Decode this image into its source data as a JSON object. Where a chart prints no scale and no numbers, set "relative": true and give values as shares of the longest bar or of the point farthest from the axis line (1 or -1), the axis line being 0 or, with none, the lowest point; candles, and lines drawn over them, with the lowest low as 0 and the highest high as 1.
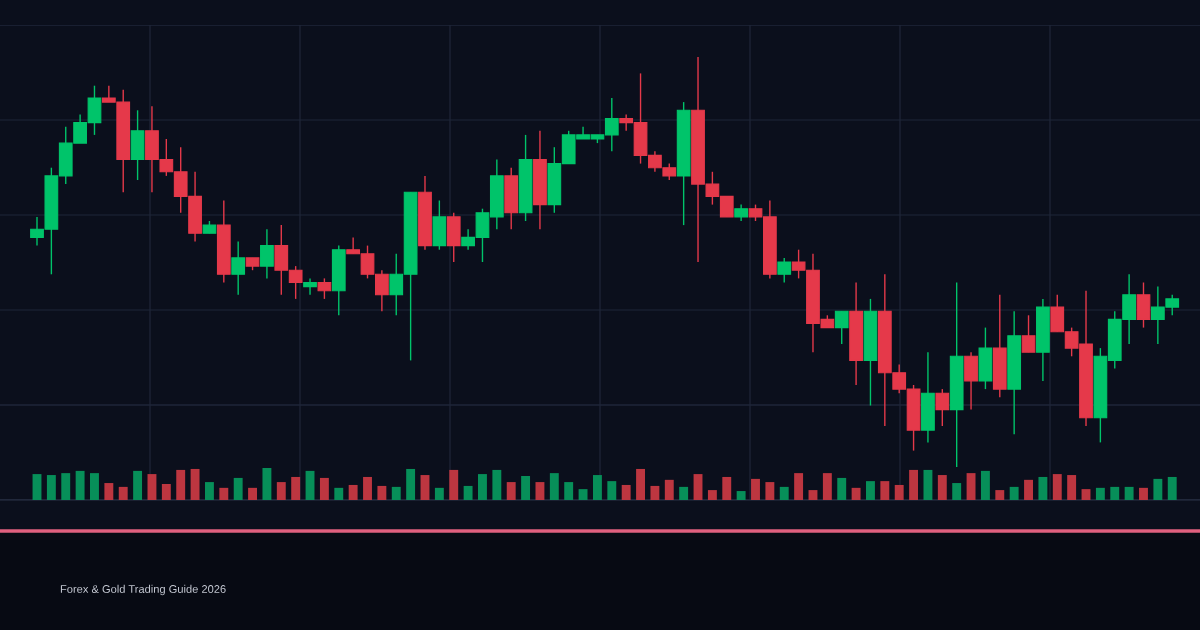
{
  "chart_data": [
    {
      "type": "candlestick",
      "relative": true,
      "grid": true,
      "annotations": [
        "Forex & Gold Trading Guide 2026"
      ],
      "categories": [
        null,
        null,
        null,
        null,
        null,
        null,
        null,
        null,
        null,
        null,
        null,
        null,
        null,
        null,
        null,
        null,
        null,
        null,
        null,
        null,
        null,
        null,
        null,
        null,
        null,
        null,
        null,
        null,
        null,
        null,
        null,
        null,
        null,
        null,
        null,
        null,
        null,
        null,
        null,
        null,
        null,
        null,
        null,
        null,
        null,
        null,
        null,
        null,
        null,
        null,
        null,
        null,
        null,
        null,
        null,
        null,
        null,
        null,
        null,
        null,
        null,
        null,
        null,
        null,
        null,
        null,
        null,
        null,
        null,
        null,
        null,
        null,
        null,
        null,
        null,
        null,
        null,
        null,
        null,
        null
      ],
      "ohlc": [
        [
          0.56,
          0.61,
          0.54,
          0.58
        ],
        [
          0.58,
          0.73,
          0.47,
          0.71
        ],
        [
          0.71,
          0.83,
          0.69,
          0.79
        ],
        [
          0.79,
          0.86,
          0.79,
          0.84
        ],
        [
          0.84,
          0.93,
          0.81,
          0.9
        ],
        [
          0.9,
          0.93,
          0.89,
          0.89
        ],
        [
          0.89,
          0.92,
          0.67,
          0.75
        ],
        [
          0.75,
          0.87,
          0.7,
          0.82
        ],
        [
          0.82,
          0.88,
          0.67,
          0.75
        ],
        [
          0.75,
          0.8,
          0.71,
          0.72
        ],
        [
          0.72,
          0.78,
          0.62,
          0.66
        ],
        [
          0.66,
          0.72,
          0.55,
          0.57
        ],
        [
          0.57,
          0.6,
          0.57,
          0.59
        ],
        [
          0.59,
          0.65,
          0.45,
          0.47
        ],
        [
          0.47,
          0.55,
          0.42,
          0.51
        ],
        [
          0.51,
          0.51,
          0.48,
          0.49
        ],
        [
          0.49,
          0.58,
          0.46,
          0.54
        ],
        [
          0.54,
          0.59,
          0.42,
          0.48
        ],
        [
          0.48,
          0.49,
          0.41,
          0.45
        ],
        [
          0.44,
          0.46,
          0.42,
          0.45
        ],
        [
          0.45,
          0.46,
          0.41,
          0.43
        ],
        [
          0.43,
          0.54,
          0.37,
          0.53
        ],
        [
          0.53,
          0.56,
          0.52,
          0.52
        ],
        [
          0.52,
          0.54,
          0.46,
          0.47
        ],
        [
          0.47,
          0.48,
          0.38,
          0.42
        ],
        [
          0.42,
          0.52,
          0.37,
          0.47
        ],
        [
          0.47,
          0.67,
          0.26,
          0.67
        ],
        [
          0.67,
          0.71,
          0.53,
          0.54
        ],
        [
          0.54,
          0.65,
          0.53,
          0.61
        ],
        [
          0.61,
          0.62,
          0.5,
          0.54
        ],
        [
          0.54,
          0.58,
          0.53,
          0.56
        ],
        [
          0.56,
          0.63,
          0.5,
          0.62
        ],
        [
          0.61,
          0.75,
          0.58,
          0.71
        ],
        [
          0.71,
          0.73,
          0.58,
          0.62
        ],
        [
          0.62,
          0.81,
          0.6,
          0.75
        ],
        [
          0.75,
          0.82,
          0.58,
          0.64
        ],
        [
          0.64,
          0.78,
          0.62,
          0.74
        ],
        [
          0.74,
          0.82,
          0.74,
          0.81
        ],
        [
          0.8,
          0.83,
          0.8,
          0.81
        ],
        [
          0.8,
          0.81,
          0.79,
          0.81
        ],
        [
          0.81,
          0.9,
          0.77,
          0.85
        ],
        [
          0.85,
          0.86,
          0.82,
          0.84
        ],
        [
          0.84,
          0.96,
          0.74,
          0.76
        ],
        [
          0.76,
          0.77,
          0.72,
          0.73
        ],
        [
          0.73,
          0.74,
          0.7,
          0.71
        ],
        [
          0.71,
          0.89,
          0.59,
          0.87
        ],
        [
          0.87,
          1.0,
          0.5,
          0.69
        ],
        [
          0.69,
          0.72,
          0.64,
          0.66
        ],
        [
          0.66,
          0.66,
          0.61,
          0.61
        ],
        [
          0.61,
          0.64,
          0.6,
          0.63
        ],
        [
          0.63,
          0.64,
          0.6,
          0.61
        ],
        [
          0.61,
          0.65,
          0.46,
          0.47
        ],
        [
          0.47,
          0.51,
          0.45,
          0.5
        ],
        [
          0.5,
          0.53,
          0.46,
          0.48
        ],
        [
          0.48,
          0.52,
          0.28,
          0.35
        ],
        [
          0.36,
          0.37,
          0.34,
          0.34
        ],
        [
          0.34,
          0.38,
          0.3,
          0.38
        ],
        [
          0.38,
          0.45,
          0.2,
          0.26
        ],
        [
          0.26,
          0.41,
          0.15,
          0.38
        ],
        [
          0.38,
          0.47,
          0.1,
          0.23
        ],
        [
          0.23,
          0.25,
          0.18,
          0.19
        ],
        [
          0.19,
          0.2,
          0.04,
          0.09
        ],
        [
          0.09,
          0.28,
          0.06,
          0.18
        ],
        [
          0.18,
          0.19,
          0.1,
          0.14
        ],
        [
          0.14,
          0.45,
          0.0,
          0.27
        ],
        [
          0.27,
          0.28,
          0.14,
          0.21
        ],
        [
          0.21,
          0.34,
          0.19,
          0.29
        ],
        [
          0.29,
          0.42,
          0.17,
          0.19
        ],
        [
          0.19,
          0.38,
          0.08,
          0.32
        ],
        [
          0.32,
          0.37,
          0.28,
          0.28
        ],
        [
          0.28,
          0.41,
          0.21,
          0.39
        ],
        [
          0.39,
          0.42,
          0.33,
          0.33
        ],
        [
          0.33,
          0.34,
          0.27,
          0.29
        ],
        [
          0.3,
          0.43,
          0.1,
          0.12
        ],
        [
          0.12,
          0.29,
          0.06,
          0.27
        ],
        [
          0.26,
          0.38,
          0.24,
          0.36
        ],
        [
          0.36,
          0.47,
          0.3,
          0.42
        ],
        [
          0.42,
          0.45,
          0.34,
          0.36
        ],
        [
          0.36,
          0.44,
          0.3,
          0.39
        ],
        [
          0.39,
          0.42,
          0.37,
          0.41
        ]
      ],
      "colors": [
        "#00c46a",
        "#00c46a",
        "#00c46a",
        "#00c46a",
        "#00c46a",
        "#e5394a",
        "#e5394a",
        "#00c46a",
        "#e5394a",
        "#e5394a",
        "#e5394a",
        "#e5394a",
        "#00c46a",
        "#e5394a",
        "#00c46a",
        "#e5394a",
        "#00c46a",
        "#e5394a",
        "#e5394a",
        "#00c46a",
        "#e5394a",
        "#00c46a",
        "#e5394a",
        "#e5394a",
        "#e5394a",
        "#00c46a",
        "#00c46a",
        "#e5394a",
        "#00c46a",
        "#e5394a",
        "#00c46a",
        "#00c46a",
        "#00c46a",
        "#e5394a",
        "#00c46a",
        "#e5394a",
        "#00c46a",
        "#00c46a",
        "#00c46a",
        "#00c46a",
        "#00c46a",
        "#e5394a",
        "#e5394a",
        "#e5394a",
        "#e5394a",
        "#00c46a",
        "#e5394a",
        "#e5394a",
        "#e5394a",
        "#00c46a",
        "#e5394a",
        "#e5394a",
        "#00c46a",
        "#e5394a",
        "#e5394a",
        "#e5394a",
        "#00c46a",
        "#e5394a",
        "#00c46a",
        "#e5394a",
        "#e5394a",
        "#e5394a",
        "#00c46a",
        "#e5394a",
        "#00c46a",
        "#e5394a",
        "#00c46a",
        "#e5394a",
        "#00c46a",
        "#e5394a",
        "#00c46a",
        "#e5394a",
        "#e5394a",
        "#e5394a",
        "#00c46a",
        "#00c46a",
        "#00c46a",
        "#e5394a",
        "#00c46a",
        "#00c46a"
      ]
    },
    {
      "type": "bar",
      "relative": true,
      "categories": [
        null,
        null,
        null,
        null,
        null,
        null,
        null,
        null,
        null,
        null,
        null,
        null,
        null,
        null,
        null,
        null,
        null,
        null,
        null,
        null,
        null,
        null,
        null,
        null,
        null,
        null,
        null,
        null,
        null,
        null,
        null,
        null,
        null,
        null,
        null,
        null,
        null,
        null,
        null,
        null,
        null,
        null,
        null,
        null,
        null,
        null,
        null,
        null,
        null,
        null,
        null,
        null,
        null,
        null,
        null,
        null,
        null,
        null,
        null,
        null,
        null,
        null,
        null,
        null,
        null,
        null,
        null,
        null,
        null,
        null,
        null,
        null,
        null,
        null,
        null,
        null,
        null,
        null,
        null,
        null
      ],
      "values": [
        0.81,
        0.78,
        0.84,
        0.91,
        0.84,
        0.53,
        0.41,
        0.91,
        0.81,
        0.5,
        0.94,
        0.97,
        0.56,
        0.38,
        0.69,
        0.38,
        1,
        0.56,
        0.72,
        0.91,
        0.69,
        0.38,
        0.47,
        0.72,
        0.44,
        0.41,
        0.97,
        0.78,
        0.38,
        0.94,
        0.44,
        0.81,
        0.94,
        0.56,
        0.75,
        0.56,
        0.84,
        0.56,
        0.34,
        0.78,
        0.59,
        0.47,
        0.97,
        0.44,
        0.63,
        0.41,
        0.81,
        0.31,
        0.72,
        0.28,
        0.66,
        0.56,
        0.41,
        0.84,
        0.31,
        0.84,
        0.69,
        0.38,
        0.59,
        0.59,
        0.47,
        0.94,
        0.94,
        0.78,
        0.53,
        0.84,
        0.91,
        0.31,
        0.41,
        0.63,
        0.72,
        0.81,
        0.78,
        0.34,
        0.38,
        0.41,
        0.41,
        0.38,
        0.66,
        0.72
      ],
      "colors": [
        "#078f59",
        "#078f59",
        "#078f59",
        "#078f59",
        "#078f59",
        "#bd3640",
        "#bd3640",
        "#078f59",
        "#bd3640",
        "#bd3640",
        "#bd3640",
        "#bd3640",
        "#078f59",
        "#bd3640",
        "#078f59",
        "#bd3640",
        "#078f59",
        "#bd3640",
        "#bd3640",
        "#078f59",
        "#bd3640",
        "#078f59",
        "#bd3640",
        "#bd3640",
        "#bd3640",
        "#078f59",
        "#078f59",
        "#bd3640",
        "#078f59",
        "#bd3640",
        "#078f59",
        "#078f59",
        "#078f59",
        "#bd3640",
        "#078f59",
        "#bd3640",
        "#078f59",
        "#078f59",
        "#078f59",
        "#078f59",
        "#078f59",
        "#bd3640",
        "#bd3640",
        "#bd3640",
        "#bd3640",
        "#078f59",
        "#bd3640",
        "#bd3640",
        "#bd3640",
        "#078f59",
        "#bd3640",
        "#bd3640",
        "#078f59",
        "#bd3640",
        "#bd3640",
        "#bd3640",
        "#078f59",
        "#bd3640",
        "#078f59",
        "#bd3640",
        "#bd3640",
        "#bd3640",
        "#078f59",
        "#bd3640",
        "#078f59",
        "#bd3640",
        "#078f59",
        "#bd3640",
        "#078f59",
        "#bd3640",
        "#078f59",
        "#bd3640",
        "#bd3640",
        "#bd3640",
        "#078f59",
        "#078f59",
        "#078f59",
        "#bd3640",
        "#078f59",
        "#078f59"
      ]
    }
  ]
}
